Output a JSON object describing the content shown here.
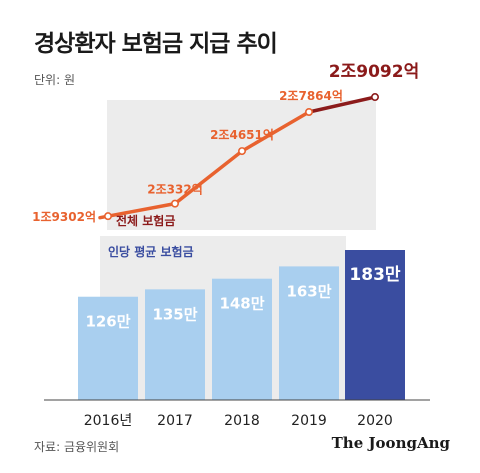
{
  "title": "경상환자 보험금 지급 추이",
  "unit_label": "단위: 원",
  "source": "자료: 금융위원회",
  "credit": "The JoongAng",
  "colors": {
    "line": "#e8622f",
    "line_last": "#8b1a1a",
    "label_last": "#8b1a1a",
    "bar": "#a9cfef",
    "bar_last": "#3a4da0",
    "bar_label": "#ffffff",
    "panel": "#ececec",
    "tick": "#222222"
  },
  "chart_data": [
    {
      "type": "line",
      "series_label": "전체 보험금",
      "x": [
        "2016년",
        "2017",
        "2018",
        "2019",
        "2020"
      ],
      "values_krw": [
        19302,
        20332,
        24651,
        27864,
        29092
      ],
      "value_unit": "억원",
      "labels": [
        "1조9302억",
        "2조332억",
        "2조4651억",
        "2조7864억",
        "2조9092억"
      ]
    },
    {
      "type": "bar",
      "series_label": "인당 평균 보험금",
      "categories": [
        "2016년",
        "2017",
        "2018",
        "2019",
        "2020"
      ],
      "values": [
        126,
        135,
        148,
        163,
        183
      ],
      "value_unit": "만원",
      "labels": [
        "126만",
        "135만",
        "148만",
        "163만",
        "183만"
      ]
    }
  ]
}
